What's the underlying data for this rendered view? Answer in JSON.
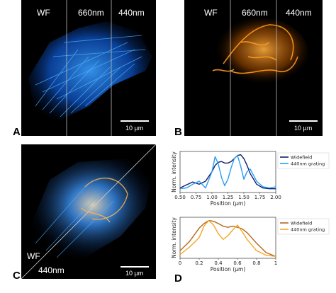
{
  "panels": {
    "A": {
      "letter": "A",
      "labels": [
        "WF",
        "660nm",
        "440nm"
      ],
      "scale": "10 µm"
    },
    "B": {
      "letter": "B",
      "labels": [
        "WF",
        "660nm",
        "440nm"
      ],
      "scale": "10 µm"
    },
    "C": {
      "letter": "C",
      "labels": [
        "WF",
        "440nm"
      ],
      "scale": "10 µm"
    },
    "D": {
      "letter": "D"
    }
  },
  "colors": {
    "blue": "#1a7ff0",
    "orange": "#ff9a1e",
    "navy": "#0b1f6b",
    "lightblue": "#2a9df4",
    "brown": "#b5651d",
    "gold": "#f5a623"
  },
  "chart_data": [
    {
      "type": "line",
      "xlabel": "Position (µm)",
      "ylabel": "Norm. intensity",
      "xlim": [
        0.5,
        2.0
      ],
      "xticks": [
        "0.50",
        "0.75",
        "1.00",
        "1.25",
        "1.50",
        "1.75",
        "2.00"
      ],
      "x": [
        0.5,
        0.6,
        0.7,
        0.8,
        0.9,
        1.0,
        1.05,
        1.1,
        1.15,
        1.2,
        1.25,
        1.3,
        1.35,
        1.4,
        1.45,
        1.5,
        1.55,
        1.6,
        1.7,
        1.8,
        1.9,
        2.0
      ],
      "series": [
        {
          "name": "Widefield",
          "color": "#0b1f6b",
          "values": [
            0.12,
            0.2,
            0.28,
            0.22,
            0.3,
            0.55,
            0.72,
            0.8,
            0.82,
            0.78,
            0.78,
            0.82,
            0.9,
            0.98,
            1.0,
            0.9,
            0.72,
            0.5,
            0.22,
            0.12,
            0.1,
            0.1
          ]
        },
        {
          "name": "440nm grating",
          "color": "#2a9df4",
          "values": [
            0.1,
            0.12,
            0.22,
            0.3,
            0.12,
            0.55,
            0.95,
            0.75,
            0.4,
            0.18,
            0.35,
            0.65,
            0.9,
            0.98,
            0.7,
            0.35,
            0.55,
            0.62,
            0.3,
            0.15,
            0.12,
            0.15
          ]
        }
      ],
      "legend": "right"
    },
    {
      "type": "line",
      "xlabel": "Position (µm)",
      "ylabel": "Norm. intensity",
      "xlim": [
        0.0,
        1.0
      ],
      "xticks": [
        "0",
        "0.2",
        "0.4",
        "0.6",
        "0.8",
        "1"
      ],
      "x": [
        0.0,
        0.1,
        0.2,
        0.25,
        0.3,
        0.35,
        0.4,
        0.45,
        0.5,
        0.55,
        0.6,
        0.65,
        0.7,
        0.8,
        0.9,
        1.0
      ],
      "series": [
        {
          "name": "Widefield",
          "color": "#b5651d",
          "values": [
            0.2,
            0.45,
            0.8,
            0.92,
            1.0,
            0.98,
            0.92,
            0.85,
            0.82,
            0.85,
            0.82,
            0.78,
            0.68,
            0.4,
            0.15,
            0.05
          ]
        },
        {
          "name": "440nm grating",
          "color": "#f5a623",
          "values": [
            0.1,
            0.3,
            0.55,
            0.85,
            1.0,
            0.88,
            0.65,
            0.5,
            0.6,
            0.75,
            0.88,
            0.7,
            0.5,
            0.2,
            0.08,
            0.05
          ]
        }
      ],
      "legend": "right"
    }
  ]
}
